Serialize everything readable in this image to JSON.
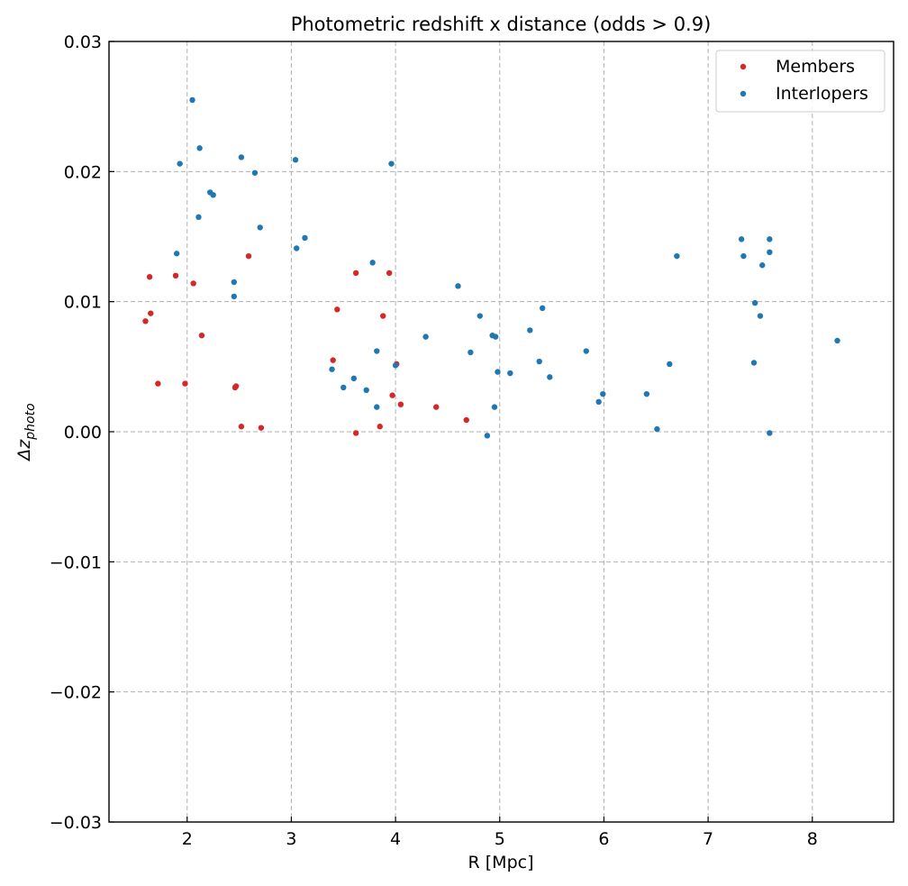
{
  "chart_data": {
    "type": "scatter",
    "title": "Photometric redshift x distance (odds > 0.9)",
    "xlabel": "R [Mpc]",
    "ylabel_main": "Δz",
    "ylabel_sub": "photo",
    "xlim": [
      1.25,
      8.78
    ],
    "ylim": [
      -0.03,
      0.03
    ],
    "xticks": [
      2,
      3,
      4,
      5,
      6,
      7,
      8
    ],
    "yticks": [
      -0.03,
      -0.02,
      -0.01,
      0.0,
      0.01,
      0.02,
      0.03
    ],
    "xtick_labels": [
      "2",
      "3",
      "4",
      "5",
      "6",
      "7",
      "8"
    ],
    "ytick_labels": [
      "−0.03",
      "−0.02",
      "−0.01",
      "0.00",
      "0.01",
      "0.02",
      "0.03"
    ],
    "grid": true,
    "legend_position": "top-right",
    "series": [
      {
        "name": "Members",
        "color": "#d62728",
        "points": [
          [
            1.6,
            0.0085
          ],
          [
            1.64,
            0.0119
          ],
          [
            1.65,
            0.0091
          ],
          [
            1.72,
            0.0037
          ],
          [
            1.89,
            0.012
          ],
          [
            1.98,
            0.0037
          ],
          [
            2.06,
            0.0114
          ],
          [
            2.14,
            0.0074
          ],
          [
            2.46,
            0.0034
          ],
          [
            2.47,
            0.0035
          ],
          [
            2.52,
            0.0004
          ],
          [
            2.59,
            0.0135
          ],
          [
            2.71,
            0.0003
          ],
          [
            3.4,
            0.0055
          ],
          [
            3.44,
            0.0094
          ],
          [
            3.62,
            0.0122
          ],
          [
            3.62,
            -0.0001
          ],
          [
            3.85,
            0.0004
          ],
          [
            3.88,
            0.0089
          ],
          [
            3.94,
            0.0122
          ],
          [
            3.97,
            0.0028
          ],
          [
            4.01,
            0.0052
          ],
          [
            4.05,
            0.0021
          ],
          [
            4.39,
            0.0019
          ],
          [
            4.68,
            0.0009
          ]
        ]
      },
      {
        "name": "Interlopers",
        "color": "#1f77b4",
        "points": [
          [
            1.9,
            0.0137
          ],
          [
            1.93,
            0.0206
          ],
          [
            2.05,
            0.0255
          ],
          [
            2.11,
            0.0165
          ],
          [
            2.12,
            0.0218
          ],
          [
            2.22,
            0.0184
          ],
          [
            2.25,
            0.0182
          ],
          [
            2.45,
            0.0115
          ],
          [
            2.45,
            0.0104
          ],
          [
            2.52,
            0.0211
          ],
          [
            2.65,
            0.0199
          ],
          [
            2.7,
            0.0157
          ],
          [
            3.04,
            0.0209
          ],
          [
            3.05,
            0.0141
          ],
          [
            3.13,
            0.0149
          ],
          [
            3.39,
            0.0048
          ],
          [
            3.5,
            0.0034
          ],
          [
            3.6,
            0.0041
          ],
          [
            3.72,
            0.0032
          ],
          [
            3.78,
            0.013
          ],
          [
            3.82,
            0.0062
          ],
          [
            3.82,
            0.0019
          ],
          [
            3.96,
            0.0206
          ],
          [
            4.0,
            0.0051
          ],
          [
            4.29,
            0.0073
          ],
          [
            4.6,
            0.0112
          ],
          [
            4.72,
            0.0061
          ],
          [
            4.81,
            0.0089
          ],
          [
            4.88,
            -0.0003
          ],
          [
            4.93,
            0.0074
          ],
          [
            4.95,
            0.0019
          ],
          [
            4.96,
            0.0073
          ],
          [
            4.98,
            0.0046
          ],
          [
            5.1,
            0.0045
          ],
          [
            5.29,
            0.0078
          ],
          [
            5.38,
            0.0054
          ],
          [
            5.41,
            0.0095
          ],
          [
            5.48,
            0.0042
          ],
          [
            5.83,
            0.0062
          ],
          [
            5.95,
            0.0023
          ],
          [
            5.99,
            0.0029
          ],
          [
            6.41,
            0.0029
          ],
          [
            6.51,
            0.0002
          ],
          [
            6.63,
            0.0052
          ],
          [
            6.7,
            0.0135
          ],
          [
            7.32,
            0.0148
          ],
          [
            7.34,
            0.0135
          ],
          [
            7.44,
            0.0053
          ],
          [
            7.45,
            0.0099
          ],
          [
            7.5,
            0.0089
          ],
          [
            7.52,
            0.0128
          ],
          [
            7.59,
            0.0148
          ],
          [
            7.59,
            0.0138
          ],
          [
            7.59,
            -0.0001
          ],
          [
            8.24,
            0.007
          ]
        ]
      }
    ]
  }
}
